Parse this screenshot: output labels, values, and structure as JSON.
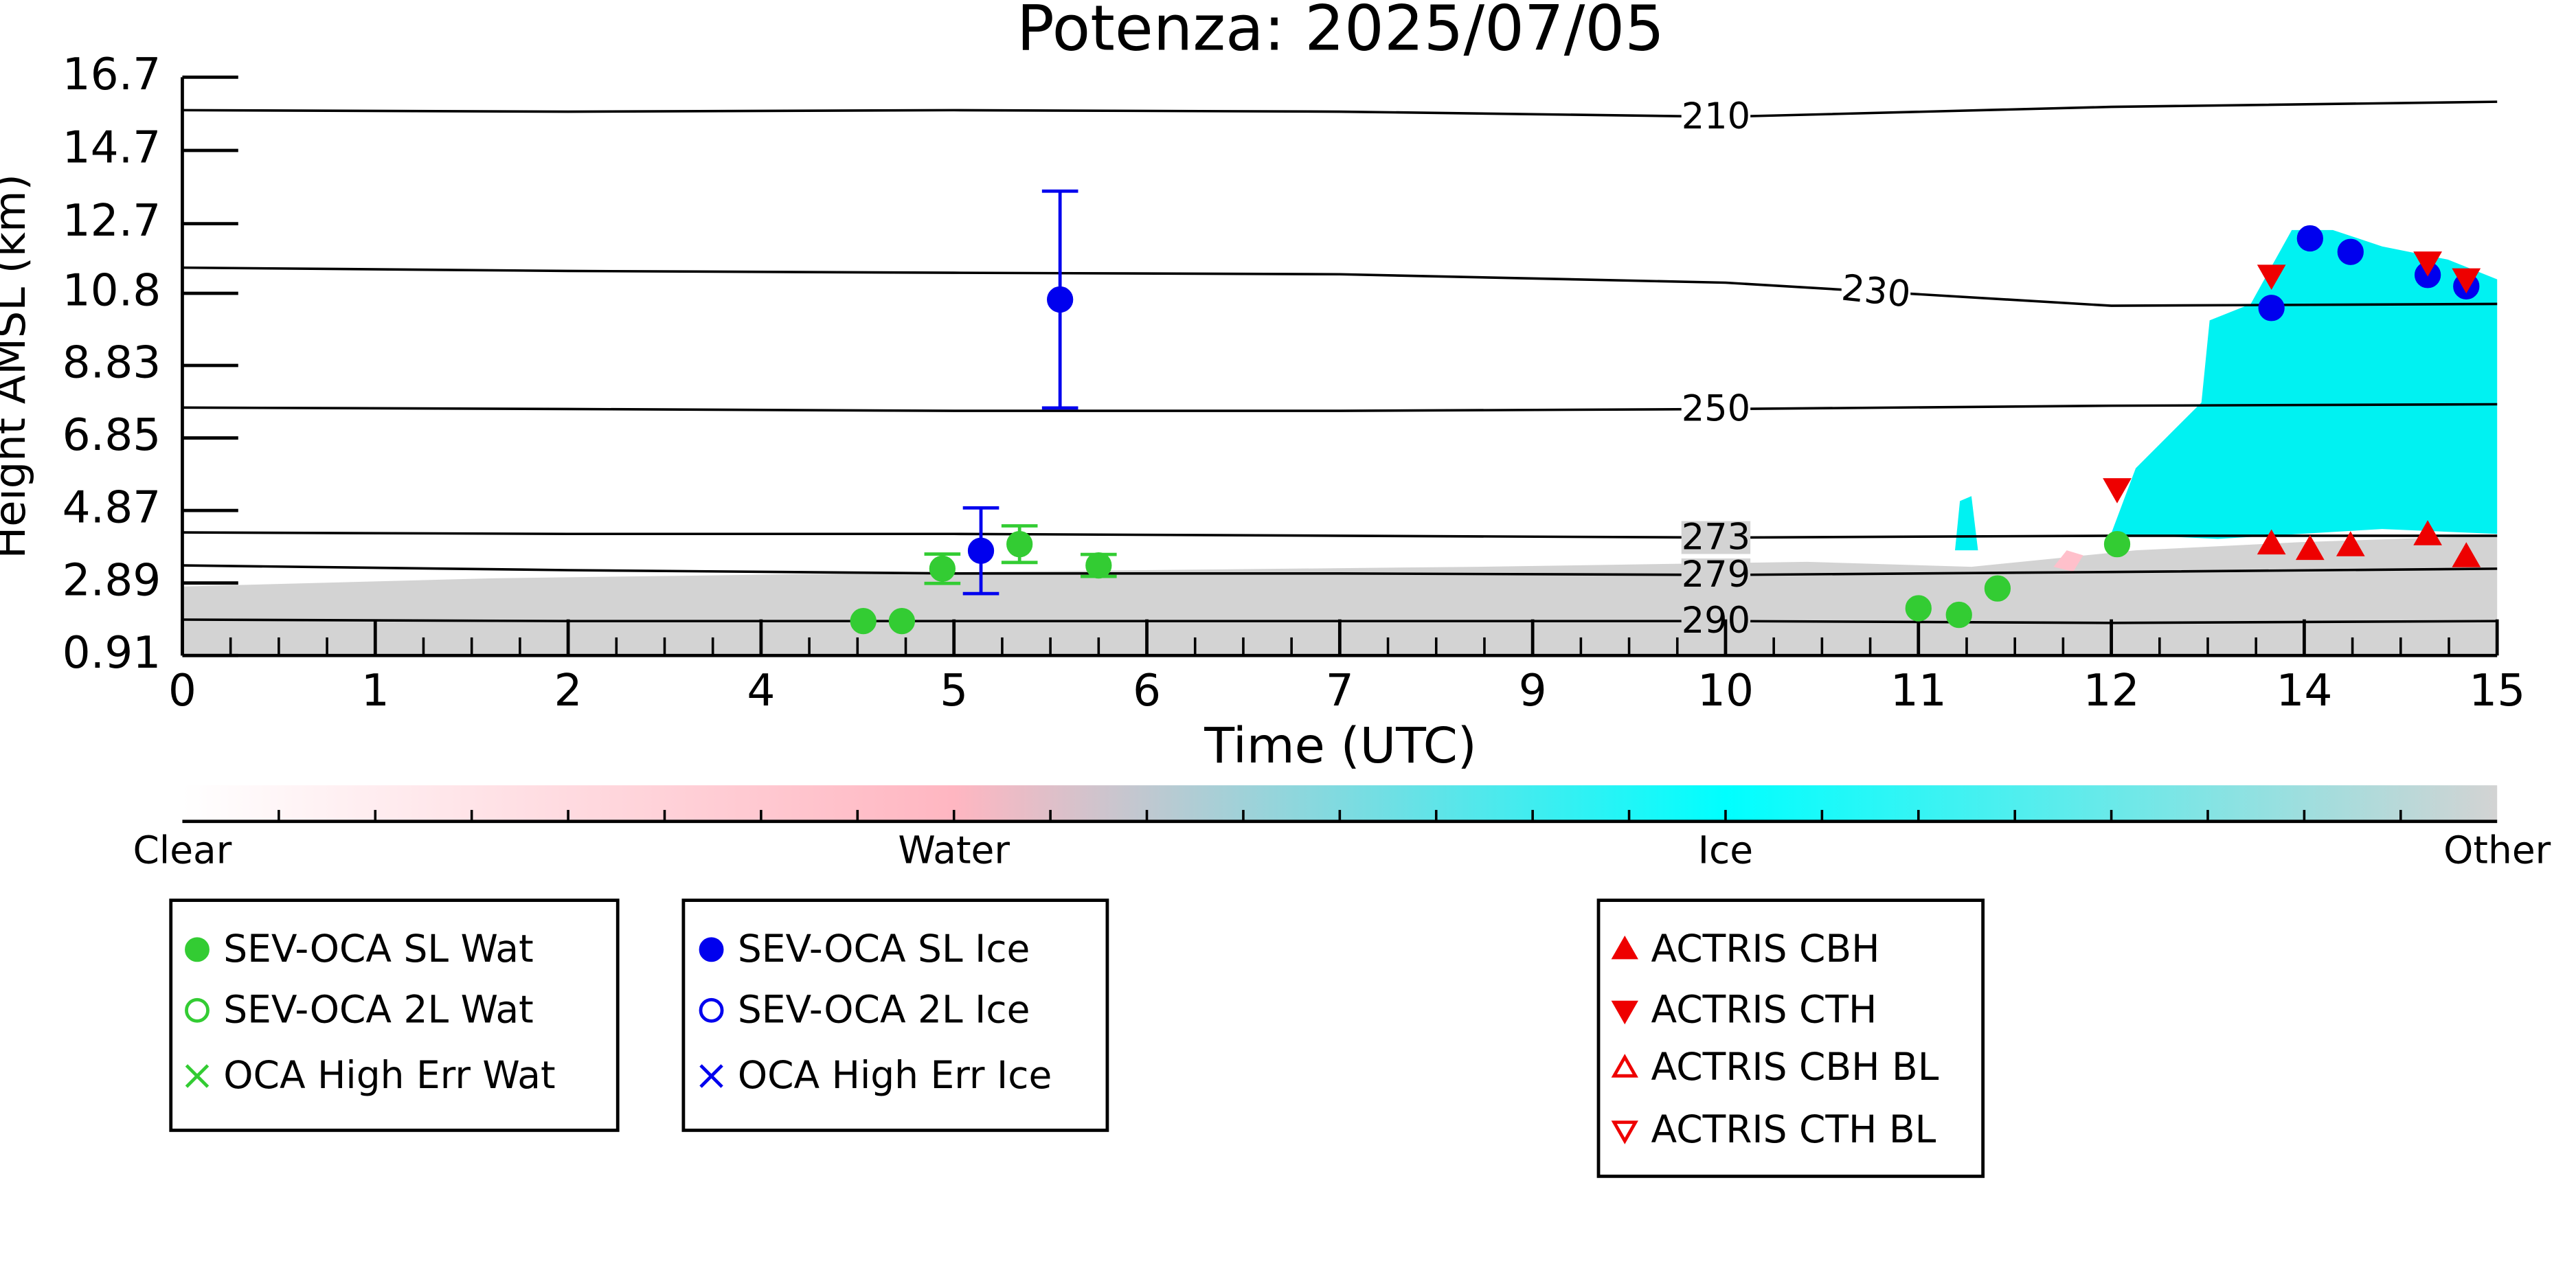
{
  "chart_data": {
    "type": "scatter",
    "title": "Potenza: 2025/07/05",
    "x_label": "Time (UTC)",
    "y_label": "Height AMSL (km)",
    "xlim": [
      0,
      12
    ],
    "xticks": [
      {
        "value": 0,
        "label": "0"
      },
      {
        "value": 1,
        "label": "1"
      },
      {
        "value": 2,
        "label": "2"
      },
      {
        "value": 3,
        "label": "4"
      },
      {
        "value": 4,
        "label": "5"
      },
      {
        "value": 5,
        "label": "6"
      },
      {
        "value": 6,
        "label": "7"
      },
      {
        "value": 7,
        "label": "9"
      },
      {
        "value": 8,
        "label": "10"
      },
      {
        "value": 9,
        "label": "11"
      },
      {
        "value": 10,
        "label": "12"
      },
      {
        "value": 11,
        "label": "14"
      },
      {
        "value": 12,
        "label": "15"
      }
    ],
    "ylim": [
      0.91,
      16.7
    ],
    "yticks": [
      0.91,
      2.89,
      4.87,
      6.85,
      8.83,
      10.8,
      12.7,
      14.7,
      16.7
    ],
    "contours": [
      {
        "level": 210,
        "x": [
          0,
          2,
          4,
          6,
          8,
          10,
          12
        ],
        "values": [
          15.8,
          15.76,
          15.8,
          15.76,
          15.62,
          15.89,
          16.03
        ]
      },
      {
        "level": 230,
        "x": [
          0,
          2,
          4,
          6,
          8,
          10,
          12
        ],
        "values": [
          11.5,
          11.41,
          11.36,
          11.32,
          11.09,
          10.46,
          10.51
        ]
      },
      {
        "level": 250,
        "x": [
          0,
          2,
          4,
          6,
          8,
          10,
          12
        ],
        "values": [
          7.68,
          7.64,
          7.59,
          7.59,
          7.64,
          7.73,
          7.77
        ]
      },
      {
        "level": 273,
        "x": [
          0,
          2,
          4,
          6,
          8,
          10,
          12
        ],
        "values": [
          4.27,
          4.23,
          4.23,
          4.18,
          4.13,
          4.18,
          4.18
        ]
      },
      {
        "level": 279,
        "x": [
          0,
          2,
          4,
          6,
          8,
          10,
          12
        ],
        "values": [
          3.37,
          3.24,
          3.15,
          3.15,
          3.11,
          3.19,
          3.28
        ]
      },
      {
        "level": 290,
        "x": [
          0,
          2,
          4,
          6,
          8,
          10,
          12
        ],
        "values": [
          1.89,
          1.85,
          1.85,
          1.85,
          1.85,
          1.8,
          1.85
        ]
      }
    ],
    "colorbar": {
      "labels": [
        "Clear",
        "Water",
        "Ice",
        "Other"
      ],
      "colors": [
        "#ffffff",
        "#ffb6c1",
        "#00ffff",
        "#d3d3d3"
      ]
    },
    "legend_groups": [
      [
        {
          "name": "SEV-OCA SL Wat",
          "color": "#33cc33",
          "marker": "filled-circle",
          "x": [
            3.53,
            3.73,
            3.94,
            4.34,
            4.75,
            9.0,
            9.21,
            9.41,
            10.03
          ],
          "values": [
            1.85,
            1.85,
            3.28,
            3.95,
            3.37,
            2.2,
            2.02,
            2.74,
            3.95
          ],
          "errors": [
            null,
            null,
            0.4,
            0.5,
            0.3,
            null,
            null,
            null,
            null
          ]
        },
        {
          "name": "SEV-OCA 2L Wat",
          "color": "#33cc33",
          "marker": "open-circle",
          "x": [],
          "values": []
        },
        {
          "name": "OCA High Err Wat",
          "color": "#33cc33",
          "marker": "x",
          "x": [],
          "values": []
        }
      ],
      [
        {
          "name": "SEV-OCA SL Ice",
          "color": "#0000ee",
          "marker": "filled-circle",
          "x": [
            4.14,
            4.55,
            10.83,
            11.03,
            11.24,
            11.64,
            11.84
          ],
          "values": [
            3.77,
            10.63,
            10.4,
            12.3,
            11.93,
            11.3,
            10.99
          ],
          "errors": [
            1.17,
            2.96,
            null,
            null,
            null,
            null,
            null
          ]
        },
        {
          "name": "SEV-OCA 2L Ice",
          "color": "#0000ee",
          "marker": "open-circle",
          "x": [],
          "values": []
        },
        {
          "name": "OCA High Err Ice",
          "color": "#0000ee",
          "marker": "x",
          "x": [],
          "values": []
        }
      ],
      [
        {
          "name": "ACTRIS CBH",
          "color": "#ee0000",
          "marker": "up",
          "x": [
            10.83,
            11.03,
            11.24,
            11.64,
            11.84
          ],
          "values": [
            3.95,
            3.8,
            3.9,
            4.2,
            3.6
          ]
        },
        {
          "name": "ACTRIS CTH",
          "color": "#ee0000",
          "marker": "down",
          "x": [
            10.03,
            10.83,
            11.64,
            11.84
          ],
          "values": [
            5.47,
            11.3,
            11.66,
            11.2
          ]
        },
        {
          "name": "ACTRIS CBH BL",
          "color": "#ee0000",
          "marker": "up-open",
          "x": [],
          "values": []
        },
        {
          "name": "ACTRIS CTH BL",
          "color": "#ee0000",
          "marker": "down-open",
          "x": [],
          "values": []
        }
      ]
    ]
  }
}
